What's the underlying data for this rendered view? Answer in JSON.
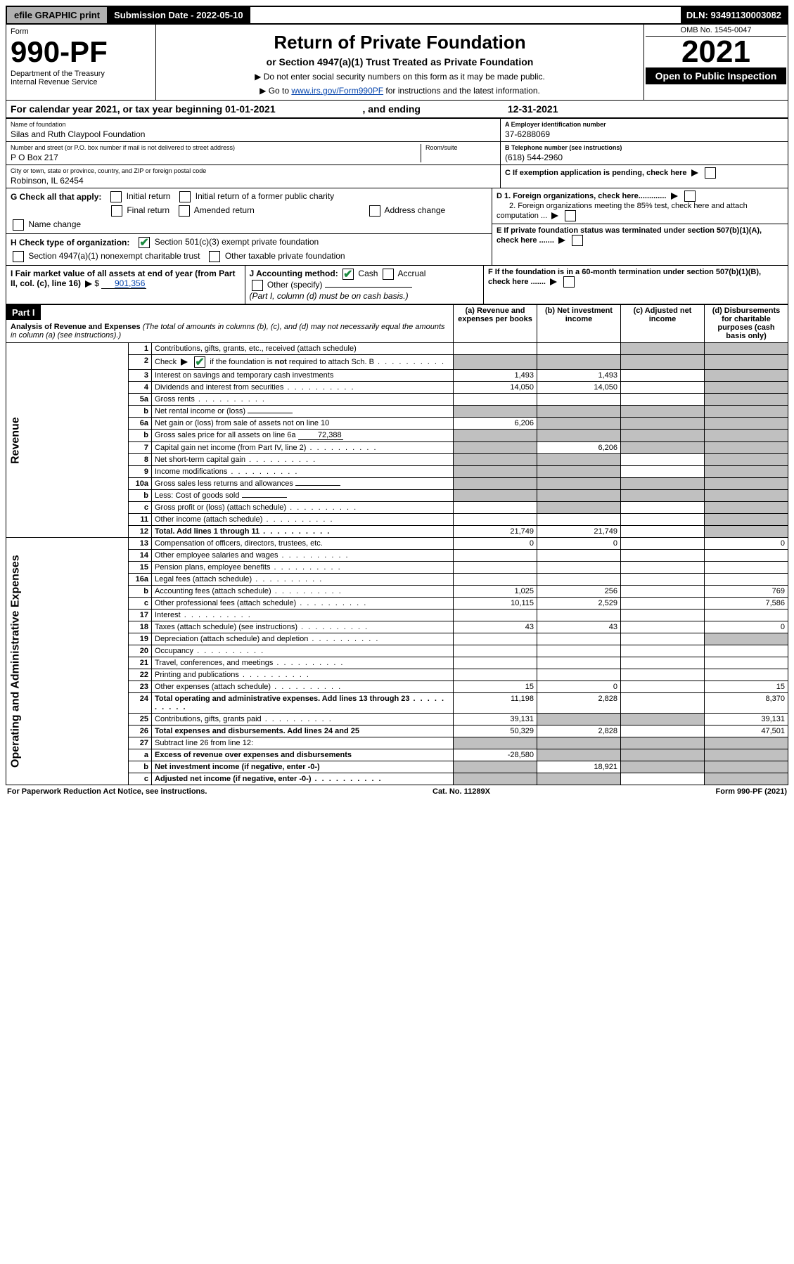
{
  "topbar": {
    "efile": "efile GRAPHIC print",
    "submission": "Submission Date - 2022-05-10",
    "dln": "DLN: 93491130003082"
  },
  "header": {
    "form_label": "Form",
    "form_number": "990-PF",
    "dept": "Department of the Treasury",
    "irs": "Internal Revenue Service",
    "title": "Return of Private Foundation",
    "subtitle": "or Section 4947(a)(1) Trust Treated as Private Foundation",
    "instr1": "▶ Do not enter social security numbers on this form as it may be made public.",
    "instr2_pre": "▶ Go to ",
    "instr2_link": "www.irs.gov/Form990PF",
    "instr2_post": " for instructions and the latest information.",
    "omb": "OMB No. 1545-0047",
    "year": "2021",
    "open": "Open to Public Inspection"
  },
  "calendar": {
    "text_pre": "For calendar year 2021, or tax year beginning ",
    "begin": "01-01-2021",
    "text_mid": " , and ending ",
    "end": "12-31-2021"
  },
  "entity": {
    "name_label": "Name of foundation",
    "name": "Silas and Ruth Claypool Foundation",
    "addr_label": "Number and street (or P.O. box number if mail is not delivered to street address)",
    "addr": "P O Box 217",
    "room_label": "Room/suite",
    "room": "",
    "city_label": "City or town, state or province, country, and ZIP or foreign postal code",
    "city": "Robinson, IL  62454",
    "ein_label": "A Employer identification number",
    "ein": "37-6288069",
    "phone_label": "B Telephone number (see instructions)",
    "phone": "(618) 544-2960",
    "c_label": "C If exemption application is pending, check here",
    "d1": "D 1. Foreign organizations, check here.............",
    "d2": "2. Foreign organizations meeting the 85% test, check here and attach computation ...",
    "e_label": "E  If private foundation status was terminated under section 507(b)(1)(A), check here .......",
    "f_label": "F  If the foundation is in a 60-month termination under section 507(b)(1)(B), check here ......."
  },
  "g": {
    "label": "G Check all that apply:",
    "opts": [
      "Initial return",
      "Initial return of a former public charity",
      "Final return",
      "Amended return",
      "Address change",
      "Name change"
    ]
  },
  "h": {
    "label": "H Check type of organization:",
    "opt1": "Section 501(c)(3) exempt private foundation",
    "opt2": "Section 4947(a)(1) nonexempt charitable trust",
    "opt3": "Other taxable private foundation"
  },
  "i": {
    "label": "I Fair market value of all assets at end of year (from Part II, col. (c), line 16)",
    "value": "901,356",
    "j_label": "J Accounting method:",
    "cash": "Cash",
    "accrual": "Accrual",
    "other": "Other (specify)",
    "note": "(Part I, column (d) must be on cash basis.)"
  },
  "part1": {
    "label": "Part I",
    "title": "Analysis of Revenue and Expenses",
    "title_note": " (The total of amounts in columns (b), (c), and (d) may not necessarily equal the amounts in column (a) (see instructions).)",
    "col_a": "(a)  Revenue and expenses per books",
    "col_b": "(b)  Net investment income",
    "col_c": "(c)  Adjusted net income",
    "col_d": "(d)  Disbursements for charitable purposes (cash basis only)"
  },
  "sides": {
    "revenue": "Revenue",
    "expenses": "Operating and Administrative Expenses"
  },
  "rows": [
    {
      "n": "1",
      "d": "Contributions, gifts, grants, etc., received (attach schedule)",
      "a": "",
      "b": "",
      "c": "g",
      "dd": "g"
    },
    {
      "n": "2",
      "d": "Check ▶ ☑ if the foundation is not required to attach Sch. B",
      "a": "g",
      "b": "g",
      "c": "g",
      "dd": "g",
      "checked": true,
      "dots": true
    },
    {
      "n": "3",
      "d": "Interest on savings and temporary cash investments",
      "a": "1,493",
      "b": "1,493",
      "c": "",
      "dd": "g"
    },
    {
      "n": "4",
      "d": "Dividends and interest from securities",
      "a": "14,050",
      "b": "14,050",
      "c": "",
      "dd": "g",
      "dots": true
    },
    {
      "n": "5a",
      "d": "Gross rents",
      "a": "",
      "b": "",
      "c": "",
      "dd": "g",
      "dots": true
    },
    {
      "n": "b",
      "d": "Net rental income or (loss)",
      "a": "g",
      "b": "g",
      "c": "g",
      "dd": "g",
      "inline": ""
    },
    {
      "n": "6a",
      "d": "Net gain or (loss) from sale of assets not on line 10",
      "a": "6,206",
      "b": "g",
      "c": "g",
      "dd": "g"
    },
    {
      "n": "b",
      "d": "Gross sales price for all assets on line 6a",
      "a": "g",
      "b": "g",
      "c": "g",
      "dd": "g",
      "inline": "72,388"
    },
    {
      "n": "7",
      "d": "Capital gain net income (from Part IV, line 2)",
      "a": "g",
      "b": "6,206",
      "c": "g",
      "dd": "g",
      "dots": true
    },
    {
      "n": "8",
      "d": "Net short-term capital gain",
      "a": "g",
      "b": "g",
      "c": "",
      "dd": "g",
      "dots": true
    },
    {
      "n": "9",
      "d": "Income modifications",
      "a": "g",
      "b": "g",
      "c": "",
      "dd": "g",
      "dots": true
    },
    {
      "n": "10a",
      "d": "Gross sales less returns and allowances",
      "a": "g",
      "b": "g",
      "c": "g",
      "dd": "g",
      "inline": ""
    },
    {
      "n": "b",
      "d": "Less: Cost of goods sold",
      "a": "g",
      "b": "g",
      "c": "g",
      "dd": "g",
      "inline": "",
      "dots": true
    },
    {
      "n": "c",
      "d": "Gross profit or (loss) (attach schedule)",
      "a": "",
      "b": "g",
      "c": "",
      "dd": "g",
      "dots": true
    },
    {
      "n": "11",
      "d": "Other income (attach schedule)",
      "a": "",
      "b": "",
      "c": "",
      "dd": "g",
      "dots": true
    },
    {
      "n": "12",
      "d": "Total. Add lines 1 through 11",
      "a": "21,749",
      "b": "21,749",
      "c": "",
      "dd": "g",
      "bold": true,
      "dots": true
    }
  ],
  "rows2": [
    {
      "n": "13",
      "d": "Compensation of officers, directors, trustees, etc.",
      "a": "0",
      "b": "0",
      "c": "",
      "dd": "0"
    },
    {
      "n": "14",
      "d": "Other employee salaries and wages",
      "a": "",
      "b": "",
      "c": "",
      "dd": "",
      "dots": true
    },
    {
      "n": "15",
      "d": "Pension plans, employee benefits",
      "a": "",
      "b": "",
      "c": "",
      "dd": "",
      "dots": true
    },
    {
      "n": "16a",
      "d": "Legal fees (attach schedule)",
      "a": "",
      "b": "",
      "c": "",
      "dd": "",
      "dots": true
    },
    {
      "n": "b",
      "d": "Accounting fees (attach schedule)",
      "a": "1,025",
      "b": "256",
      "c": "",
      "dd": "769",
      "dots": true
    },
    {
      "n": "c",
      "d": "Other professional fees (attach schedule)",
      "a": "10,115",
      "b": "2,529",
      "c": "",
      "dd": "7,586",
      "dots": true
    },
    {
      "n": "17",
      "d": "Interest",
      "a": "",
      "b": "",
      "c": "",
      "dd": "",
      "dots": true
    },
    {
      "n": "18",
      "d": "Taxes (attach schedule) (see instructions)",
      "a": "43",
      "b": "43",
      "c": "",
      "dd": "0",
      "dots": true
    },
    {
      "n": "19",
      "d": "Depreciation (attach schedule) and depletion",
      "a": "",
      "b": "",
      "c": "",
      "dd": "g",
      "dots": true
    },
    {
      "n": "20",
      "d": "Occupancy",
      "a": "",
      "b": "",
      "c": "",
      "dd": "",
      "dots": true
    },
    {
      "n": "21",
      "d": "Travel, conferences, and meetings",
      "a": "",
      "b": "",
      "c": "",
      "dd": "",
      "dots": true
    },
    {
      "n": "22",
      "d": "Printing and publications",
      "a": "",
      "b": "",
      "c": "",
      "dd": "",
      "dots": true
    },
    {
      "n": "23",
      "d": "Other expenses (attach schedule)",
      "a": "15",
      "b": "0",
      "c": "",
      "dd": "15",
      "dots": true
    },
    {
      "n": "24",
      "d": "Total operating and administrative expenses. Add lines 13 through 23",
      "a": "11,198",
      "b": "2,828",
      "c": "",
      "dd": "8,370",
      "bold": true,
      "dots": true
    },
    {
      "n": "25",
      "d": "Contributions, gifts, grants paid",
      "a": "39,131",
      "b": "g",
      "c": "g",
      "dd": "39,131",
      "dots": true
    },
    {
      "n": "26",
      "d": "Total expenses and disbursements. Add lines 24 and 25",
      "a": "50,329",
      "b": "2,828",
      "c": "",
      "dd": "47,501",
      "bold": true
    },
    {
      "n": "27",
      "d": "Subtract line 26 from line 12:",
      "a": "g",
      "b": "g",
      "c": "g",
      "dd": "g"
    },
    {
      "n": "a",
      "d": "Excess of revenue over expenses and disbursements",
      "a": "-28,580",
      "b": "g",
      "c": "g",
      "dd": "g",
      "bold": true
    },
    {
      "n": "b",
      "d": "Net investment income (if negative, enter -0-)",
      "a": "g",
      "b": "18,921",
      "c": "g",
      "dd": "g",
      "bold": true
    },
    {
      "n": "c",
      "d": "Adjusted net income (if negative, enter -0-)",
      "a": "g",
      "b": "g",
      "c": "",
      "dd": "g",
      "bold": true,
      "dots": true
    }
  ],
  "footer": {
    "left": "For Paperwork Reduction Act Notice, see instructions.",
    "mid": "Cat. No. 11289X",
    "right": "Form 990-PF (2021)"
  }
}
